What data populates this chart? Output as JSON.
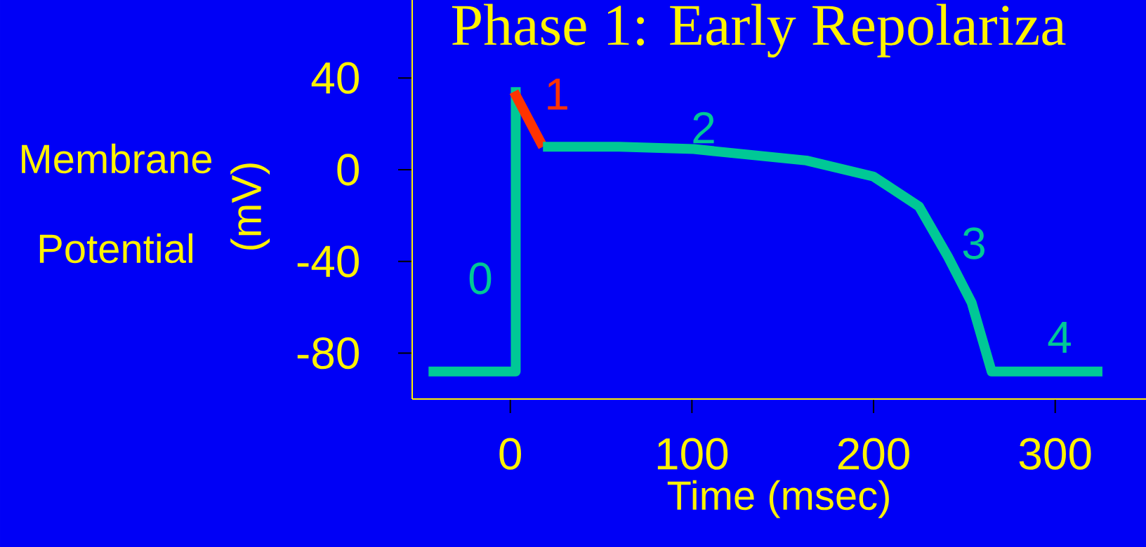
{
  "chart_data": {
    "type": "line",
    "title": "Phase 1: Early Repolariza",
    "xlabel": "Time (msec)",
    "ylabel": "(mV)",
    "xlim": [
      -54,
      350
    ],
    "ylim": [
      -100,
      74
    ],
    "xticks": [
      0,
      100,
      200,
      300
    ],
    "yticks": [
      -80,
      -40,
      0,
      40
    ],
    "series": [
      {
        "color": "#00c896",
        "x": [
          -45,
          3,
          3
        ],
        "values": [
          -88,
          -88,
          36
        ]
      },
      {
        "name": "1",
        "color": "#ff3300",
        "x": [
          2,
          18
        ],
        "values": [
          34,
          10
        ]
      },
      {
        "color": "#00c896",
        "x": [
          18,
          60,
          101,
          163,
          200,
          225,
          241,
          254,
          265,
          326
        ],
        "values": [
          10,
          10,
          9,
          4,
          -3,
          -16,
          -38,
          -58,
          -88,
          -88
        ]
      }
    ],
    "annotations": [
      "Membrane Potential",
      "0",
      "2",
      "3",
      "4"
    ],
    "grid": false,
    "line_style": "solid",
    "marker": "none"
  }
}
